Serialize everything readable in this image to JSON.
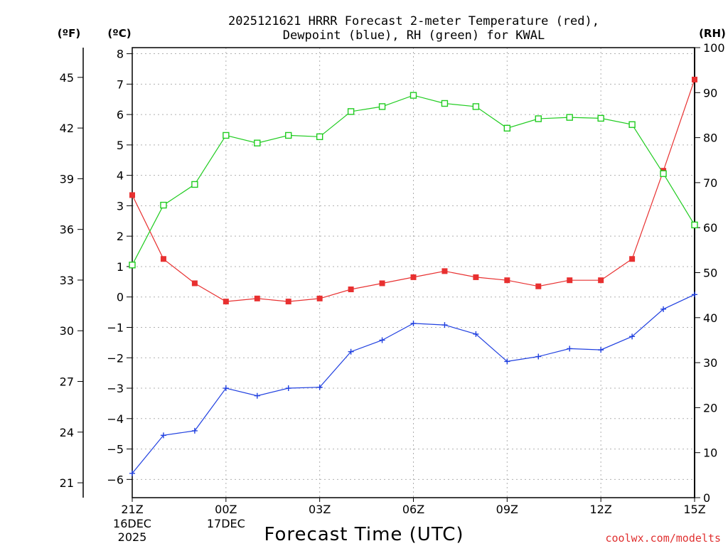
{
  "chart_data": {
    "type": "line",
    "title_line1": "2025121621 HRRR Forecast 2-meter Temperature (red),",
    "title_line2": "Dewpoint (blue), RH (green) for KWAL",
    "units": {
      "f": "(ºF)",
      "c": "(ºC)",
      "rh": "(RH)"
    },
    "xlabel": "Forecast Time (UTC)",
    "credit": "coolwx.com/modelts",
    "x_hours": [
      0,
      1,
      2,
      3,
      4,
      5,
      6,
      7,
      8,
      9,
      10,
      11,
      12,
      13,
      14,
      15,
      16,
      17,
      18
    ],
    "x_ticks": [
      {
        "hour": 0,
        "label": "21Z",
        "sub1": "16DEC",
        "sub2": "2025"
      },
      {
        "hour": 3,
        "label": "00Z",
        "sub1": "17DEC",
        "sub2": ""
      },
      {
        "hour": 6,
        "label": "03Z",
        "sub1": "",
        "sub2": ""
      },
      {
        "hour": 9,
        "label": "06Z",
        "sub1": "",
        "sub2": ""
      },
      {
        "hour": 12,
        "label": "09Z",
        "sub1": "",
        "sub2": ""
      },
      {
        "hour": 15,
        "label": "12Z",
        "sub1": "",
        "sub2": ""
      },
      {
        "hour": 18,
        "label": "15Z",
        "sub1": "",
        "sub2": ""
      }
    ],
    "c_axis": {
      "min": -6.6,
      "max": 8.2,
      "ticks": [
        -6,
        -5,
        -4,
        -3,
        -2,
        -1,
        0,
        1,
        2,
        3,
        4,
        5,
        6,
        7,
        8
      ]
    },
    "f_axis": {
      "ticks": [
        21,
        24,
        27,
        30,
        33,
        36,
        39,
        42,
        45
      ]
    },
    "rh_axis": {
      "min": 0,
      "max": 100,
      "ticks": [
        0,
        10,
        20,
        30,
        40,
        50,
        60,
        70,
        80,
        90,
        100
      ]
    },
    "series": [
      {
        "name": "Temperature",
        "unit": "C",
        "color": "#e83030",
        "marker": "filled-square",
        "values": [
          3.35,
          1.25,
          0.45,
          -0.15,
          -0.05,
          -0.15,
          -0.05,
          0.25,
          0.45,
          0.65,
          0.85,
          0.65,
          0.55,
          0.35,
          0.55,
          0.55,
          1.25,
          4.15,
          7.15
        ]
      },
      {
        "name": "Dewpoint",
        "unit": "C",
        "color": "#2040e0",
        "marker": "plus",
        "values": [
          -5.8,
          -4.55,
          -4.4,
          -3.0,
          -3.25,
          -3.0,
          -2.97,
          -1.8,
          -1.42,
          -0.87,
          -0.92,
          -1.22,
          -2.12,
          -1.96,
          -1.7,
          -1.74,
          -1.3,
          -0.4,
          0.08
        ]
      },
      {
        "name": "RH",
        "unit": "%",
        "color": "#20cc20",
        "marker": "open-square",
        "values": [
          51.7,
          65.0,
          69.6,
          80.5,
          78.8,
          80.5,
          80.2,
          85.8,
          86.9,
          89.4,
          87.6,
          86.9,
          82.1,
          84.2,
          84.5,
          84.3,
          82.9,
          72.0,
          60.6
        ]
      }
    ]
  }
}
